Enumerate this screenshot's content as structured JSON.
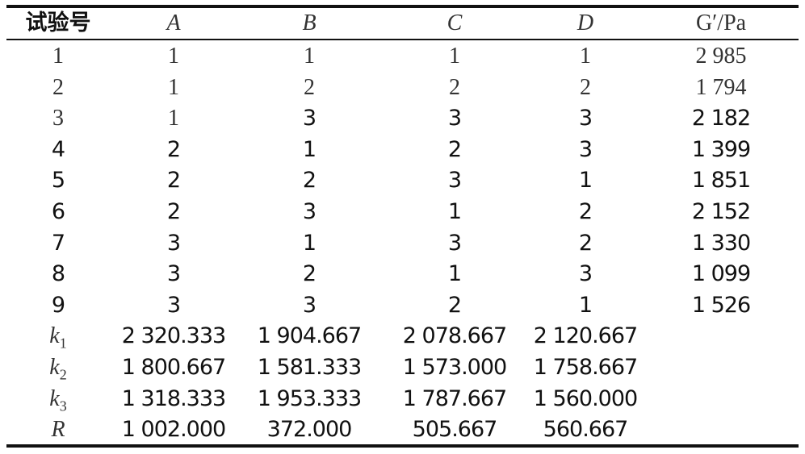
{
  "table": {
    "header": [
      "试验号",
      "A",
      "B",
      "C",
      "D",
      "G′/Pa"
    ],
    "rows": [
      [
        "1",
        "1",
        "1",
        "1",
        "1",
        "2 985"
      ],
      [
        "2",
        "1",
        "2",
        "2",
        "2",
        "1 794"
      ],
      [
        "3",
        "1",
        "3",
        "3",
        "3",
        "2 182"
      ],
      [
        "4",
        "2",
        "1",
        "2",
        "3",
        "1 399"
      ],
      [
        "5",
        "2",
        "2",
        "3",
        "1",
        "1 851"
      ],
      [
        "6",
        "2",
        "3",
        "1",
        "2",
        "2 152"
      ],
      [
        "7",
        "3",
        "1",
        "3",
        "2",
        "1 330"
      ],
      [
        "8",
        "3",
        "2",
        "1",
        "3",
        "1 099"
      ],
      [
        "9",
        "3",
        "3",
        "2",
        "1",
        "1 526"
      ]
    ],
    "stats": [
      {
        "symbol": "k",
        "sub": "1",
        "values": [
          "2 320.333",
          "1 904.667",
          "2 078.667",
          "2 120.667"
        ]
      },
      {
        "symbol": "k",
        "sub": "2",
        "values": [
          "1 800.667",
          "1 581.333",
          "1 573.000",
          "1 758.667"
        ]
      },
      {
        "symbol": "k",
        "sub": "3",
        "values": [
          "1 318.333",
          "1 953.333",
          "1 787.667",
          "1 560.000"
        ]
      },
      {
        "symbol": "R",
        "sub": null,
        "values": [
          "1 002.000",
          "372.000",
          "505.667",
          "560.667"
        ]
      }
    ]
  }
}
